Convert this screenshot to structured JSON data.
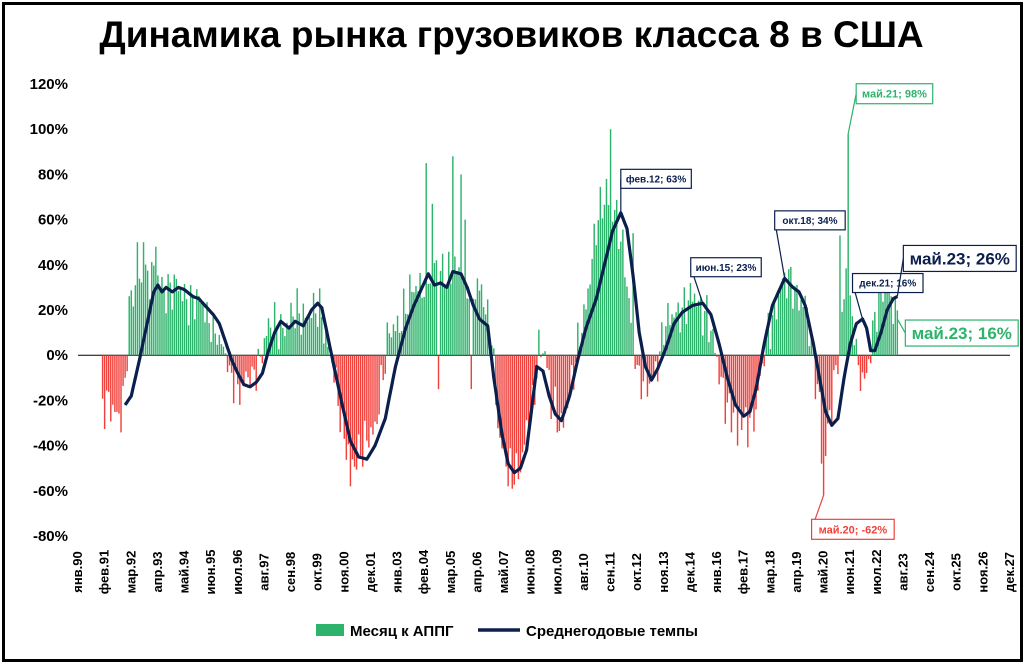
{
  "chart_data": {
    "type": "bar",
    "title": "Динамика рынка грузовиков класса 8 в США",
    "ylim": [
      -80,
      120
    ],
    "y_ticks": [
      "-80%",
      "-60%",
      "-40%",
      "-20%",
      "0%",
      "20%",
      "40%",
      "60%",
      "80%",
      "100%",
      "120%"
    ],
    "y_tick_values": [
      -80,
      -60,
      -40,
      -20,
      0,
      20,
      40,
      60,
      80,
      100,
      120
    ],
    "x_range_months": [
      "янв.90",
      "дек.27"
    ],
    "x_tick_labels": [
      "янв.90",
      "фев.91",
      "мар.92",
      "апр.93",
      "май.94",
      "июн.95",
      "июл.96",
      "авг.97",
      "сен.98",
      "окт.99",
      "ноя.00",
      "дек.01",
      "янв.03",
      "фев.04",
      "мар.05",
      "апр.06",
      "май.07",
      "июн.08",
      "июл.09",
      "авг.10",
      "сен.11",
      "окт.12",
      "ноя.13",
      "дек.14",
      "янв.16",
      "фев.17",
      "мар.18",
      "апр.19",
      "май.20",
      "июн.21",
      "июл.22",
      "авг.23",
      "сен.24",
      "окт.25",
      "ноя.26",
      "дек.27"
    ],
    "grid": false,
    "legend_position": "bottom",
    "positive_color": "#2db36b",
    "negative_color": "#f0413c",
    "line_color": "#0b1f4d",
    "series": [
      {
        "name": "Месяц к АППГ",
        "kind": "bar",
        "start": "янв.91",
        "end": "май.23",
        "anchors": [
          [
            "янв.91",
            -24
          ],
          [
            "мар.91",
            -24
          ],
          [
            "окт.91",
            -24
          ],
          [
            "дек.91",
            -14
          ],
          [
            "фев.92",
            18
          ],
          [
            "июн.92",
            32
          ],
          [
            "сен.92",
            35
          ],
          [
            "мар.93",
            33
          ],
          [
            "окт.93",
            30
          ],
          [
            "апр.94",
            27
          ],
          [
            "окт.94",
            25
          ],
          [
            "июн.95",
            14
          ],
          [
            "дек.95",
            0
          ],
          [
            "апр.96",
            -7
          ],
          [
            "авг.96",
            -14
          ],
          [
            "дек.96",
            -12
          ],
          [
            "май.97",
            -2
          ],
          [
            "сен.97",
            9
          ],
          [
            "фев.98",
            13
          ],
          [
            "авг.98",
            15
          ],
          [
            "янв.99",
            18
          ],
          [
            "июл.99",
            20
          ],
          [
            "дек.99",
            16
          ],
          [
            "май.00",
            0
          ],
          [
            "окт.00",
            -36
          ],
          [
            "фев.01",
            -45
          ],
          [
            "авг.01",
            -44
          ],
          [
            "фев.02",
            -30
          ],
          [
            "сен.02",
            8
          ],
          [
            "май.03",
            22
          ],
          [
            "дек.03",
            32
          ],
          [
            "авг.04",
            40
          ],
          [
            "май.05",
            36
          ],
          [
            "дек.05",
            33
          ],
          [
            "июн.06",
            26
          ],
          [
            "ноя.06",
            8
          ],
          [
            "мар.07",
            -40
          ],
          [
            "авг.07",
            -52
          ],
          [
            "янв.08",
            -48
          ],
          [
            "июл.08",
            -25
          ],
          [
            "окт.08",
            6
          ],
          [
            "янв.09",
            3
          ],
          [
            "апр.09",
            -24
          ],
          [
            "сен.09",
            -30
          ],
          [
            "мар.10",
            -10
          ],
          [
            "сен.10",
            25
          ],
          [
            "фев.11",
            55
          ],
          [
            "июл.11",
            72
          ],
          [
            "ноя.11",
            65
          ],
          [
            "апр.12",
            38
          ],
          [
            "авг.12",
            10
          ],
          [
            "ноя.12",
            -10
          ],
          [
            "мар.13",
            -16
          ],
          [
            "июн.13",
            -8
          ],
          [
            "ноя.13",
            10
          ],
          [
            "июл.14",
            22
          ],
          [
            "фев.15",
            24
          ],
          [
            "авг.15",
            20
          ],
          [
            "фев.16",
            -10
          ],
          [
            "авг.16",
            -25
          ],
          [
            "фев.17",
            -30
          ],
          [
            "авг.17",
            -24
          ],
          [
            "фев.18",
            12
          ],
          [
            "авг.18",
            30
          ],
          [
            "фев.19",
            32
          ],
          [
            "авг.19",
            22
          ],
          [
            "дек.19",
            -5
          ],
          [
            "апр.20",
            -22
          ],
          [
            "май.20",
            -45
          ],
          [
            "авг.20",
            -30
          ],
          [
            "янв.21",
            8
          ],
          [
            "апр.21",
            40
          ],
          [
            "июл.21",
            12
          ],
          [
            "окт.21",
            -8
          ],
          [
            "янв.22",
            -10
          ],
          [
            "май.22",
            10
          ],
          [
            "сен.22",
            28
          ],
          [
            "янв.23",
            32
          ],
          [
            "май.23",
            16
          ]
        ],
        "spikes": [
          [
            "июн.92",
            50
          ],
          [
            "сен.92",
            50
          ],
          [
            "мар.93",
            48
          ],
          [
            "мар.04",
            85
          ],
          [
            "июн.04",
            67
          ],
          [
            "апр.05",
            88
          ],
          [
            "авг.05",
            80
          ],
          [
            "окт.05",
            60
          ],
          [
            "сен.11",
            100
          ],
          [
            "июл.11",
            78
          ],
          [
            "авг.12",
            54
          ],
          [
            "май.20",
            -62
          ],
          [
            "апр.20",
            -48
          ],
          [
            "май.21",
            98
          ],
          [
            "янв.21",
            53
          ],
          [
            "ноя.16",
            -40
          ],
          [
            "июл.07",
            -58
          ],
          [
            "фев.01",
            -58
          ],
          [
            "янв.06",
            -15
          ],
          [
            "сен.04",
            -15
          ]
        ]
      },
      {
        "name": "Среднегодовые темпы",
        "kind": "line",
        "start": "дек.91",
        "end": "май.23",
        "anchors": [
          [
            "дек.91",
            -22
          ],
          [
            "мар.92",
            -18
          ],
          [
            "июл.92",
            -2
          ],
          [
            "ноя.92",
            15
          ],
          [
            "фев.93",
            28
          ],
          [
            "апр.93",
            31
          ],
          [
            "июн.93",
            28
          ],
          [
            "авг.93",
            30
          ],
          [
            "ноя.93",
            28
          ],
          [
            "фев.94",
            30
          ],
          [
            "май.94",
            29
          ],
          [
            "сен.94",
            26
          ],
          [
            "дек.94",
            25
          ],
          [
            "мар.95",
            22
          ],
          [
            "июл.95",
            18
          ],
          [
            "окт.95",
            14
          ],
          [
            "янв.96",
            6
          ],
          [
            "апр.96",
            -2
          ],
          [
            "июл.96",
            -8
          ],
          [
            "окт.96",
            -13
          ],
          [
            "янв.97",
            -14
          ],
          [
            "апр.97",
            -12
          ],
          [
            "июл.97",
            -8
          ],
          [
            "окт.97",
            2
          ],
          [
            "янв.98",
            10
          ],
          [
            "апр.98",
            15
          ],
          [
            "авг.98",
            12
          ],
          [
            "ноя.98",
            15
          ],
          [
            "мар.99",
            13
          ],
          [
            "июл.99",
            20
          ],
          [
            "окт.99",
            23
          ],
          [
            "дек.99",
            21
          ],
          [
            "мар.00",
            8
          ],
          [
            "июн.00",
            -5
          ],
          [
            "окт.00",
            -22
          ],
          [
            "фев.01",
            -38
          ],
          [
            "июн.01",
            -45
          ],
          [
            "окт.01",
            -46
          ],
          [
            "фев.02",
            -40
          ],
          [
            "июл.02",
            -28
          ],
          [
            "дек.02",
            -5
          ],
          [
            "май.03",
            12
          ],
          [
            "сен.03",
            22
          ],
          [
            "янв.04",
            30
          ],
          [
            "апр.04",
            36
          ],
          [
            "июл.04",
            31
          ],
          [
            "окт.04",
            32
          ],
          [
            "янв.05",
            30
          ],
          [
            "апр.05",
            37
          ],
          [
            "авг.05",
            36
          ],
          [
            "ноя.05",
            30
          ],
          [
            "фев.06",
            22
          ],
          [
            "май.06",
            16
          ],
          [
            "сен.06",
            13
          ],
          [
            "дек.06",
            -10
          ],
          [
            "апр.07",
            -35
          ],
          [
            "июл.07",
            -48
          ],
          [
            "окт.07",
            -52
          ],
          [
            "янв.08",
            -50
          ],
          [
            "апр.08",
            -42
          ],
          [
            "июл.08",
            -20
          ],
          [
            "сен.08",
            -5
          ],
          [
            "дек.08",
            -7
          ],
          [
            "мар.09",
            -18
          ],
          [
            "июн.09",
            -26
          ],
          [
            "сен.09",
            -29
          ],
          [
            "янв.10",
            -18
          ],
          [
            "май.10",
            -2
          ],
          [
            "сен.10",
            12
          ],
          [
            "фев.11",
            25
          ],
          [
            "июн.11",
            40
          ],
          [
            "окт.11",
            55
          ],
          [
            "фев.12",
            63
          ],
          [
            "май.12",
            56
          ],
          [
            "авг.12",
            35
          ],
          [
            "ноя.12",
            10
          ],
          [
            "фев.13",
            -5
          ],
          [
            "май.13",
            -11
          ],
          [
            "авг.13",
            -6
          ],
          [
            "дек.13",
            3
          ],
          [
            "апр.14",
            14
          ],
          [
            "авг.14",
            19
          ],
          [
            "янв.15",
            22
          ],
          [
            "июн.15",
            23
          ],
          [
            "окт.15",
            18
          ],
          [
            "фев.16",
            5
          ],
          [
            "июн.16",
            -10
          ],
          [
            "окт.16",
            -22
          ],
          [
            "фев.17",
            -27
          ],
          [
            "май.17",
            -25
          ],
          [
            "авг.17",
            -15
          ],
          [
            "дек.17",
            5
          ],
          [
            "апр.18",
            22
          ],
          [
            "авг.18",
            30
          ],
          [
            "окт.18",
            34
          ],
          [
            "фев.19",
            30
          ],
          [
            "май.19",
            28
          ],
          [
            "авг.19",
            22
          ],
          [
            "дек.19",
            5
          ],
          [
            "мар.20",
            -10
          ],
          [
            "июн.20",
            -25
          ],
          [
            "сен.20",
            -31
          ],
          [
            "дек.20",
            -28
          ],
          [
            "мар.21",
            -10
          ],
          [
            "июн.21",
            5
          ],
          [
            "сен.21",
            14
          ],
          [
            "дек.21",
            16
          ],
          [
            "фев.22",
            12
          ],
          [
            "апр.22",
            2
          ],
          [
            "июн.22",
            2
          ],
          [
            "сен.22",
            10
          ],
          [
            "дек.22",
            20
          ],
          [
            "мар.23",
            25
          ],
          [
            "май.23",
            26
          ]
        ]
      }
    ],
    "annotations": [
      {
        "text": "фев.12; 63%",
        "at": "фев.12",
        "value": 63,
        "series": "Среднегодовые темпы",
        "size": "small"
      },
      {
        "text": "июн.15; 23%",
        "at": "июн.15",
        "value": 23,
        "series": "Среднегодовые темпы",
        "size": "small"
      },
      {
        "text": "окт.18; 34%",
        "at": "окт.18",
        "value": 34,
        "series": "Среднегодовые темпы",
        "size": "small"
      },
      {
        "text": "дек.21; 16%",
        "at": "дек.21",
        "value": 16,
        "series": "Среднегодовые темпы",
        "size": "small"
      },
      {
        "text": "май.23; 26%",
        "at": "май.23",
        "value": 26,
        "series": "Среднегодовые темпы",
        "size": "big"
      },
      {
        "text": "май.21; 98%",
        "at": "май.21",
        "value": 98,
        "series": "Месяц к АППГ",
        "size": "mid"
      },
      {
        "text": "май.20; -62%",
        "at": "май.20",
        "value": -62,
        "series": "Месяц к АППГ",
        "size": "mid"
      },
      {
        "text": "май.23; 16%",
        "at": "май.23",
        "value": 16,
        "series": "Месяц к АППГ",
        "size": "big"
      }
    ]
  }
}
